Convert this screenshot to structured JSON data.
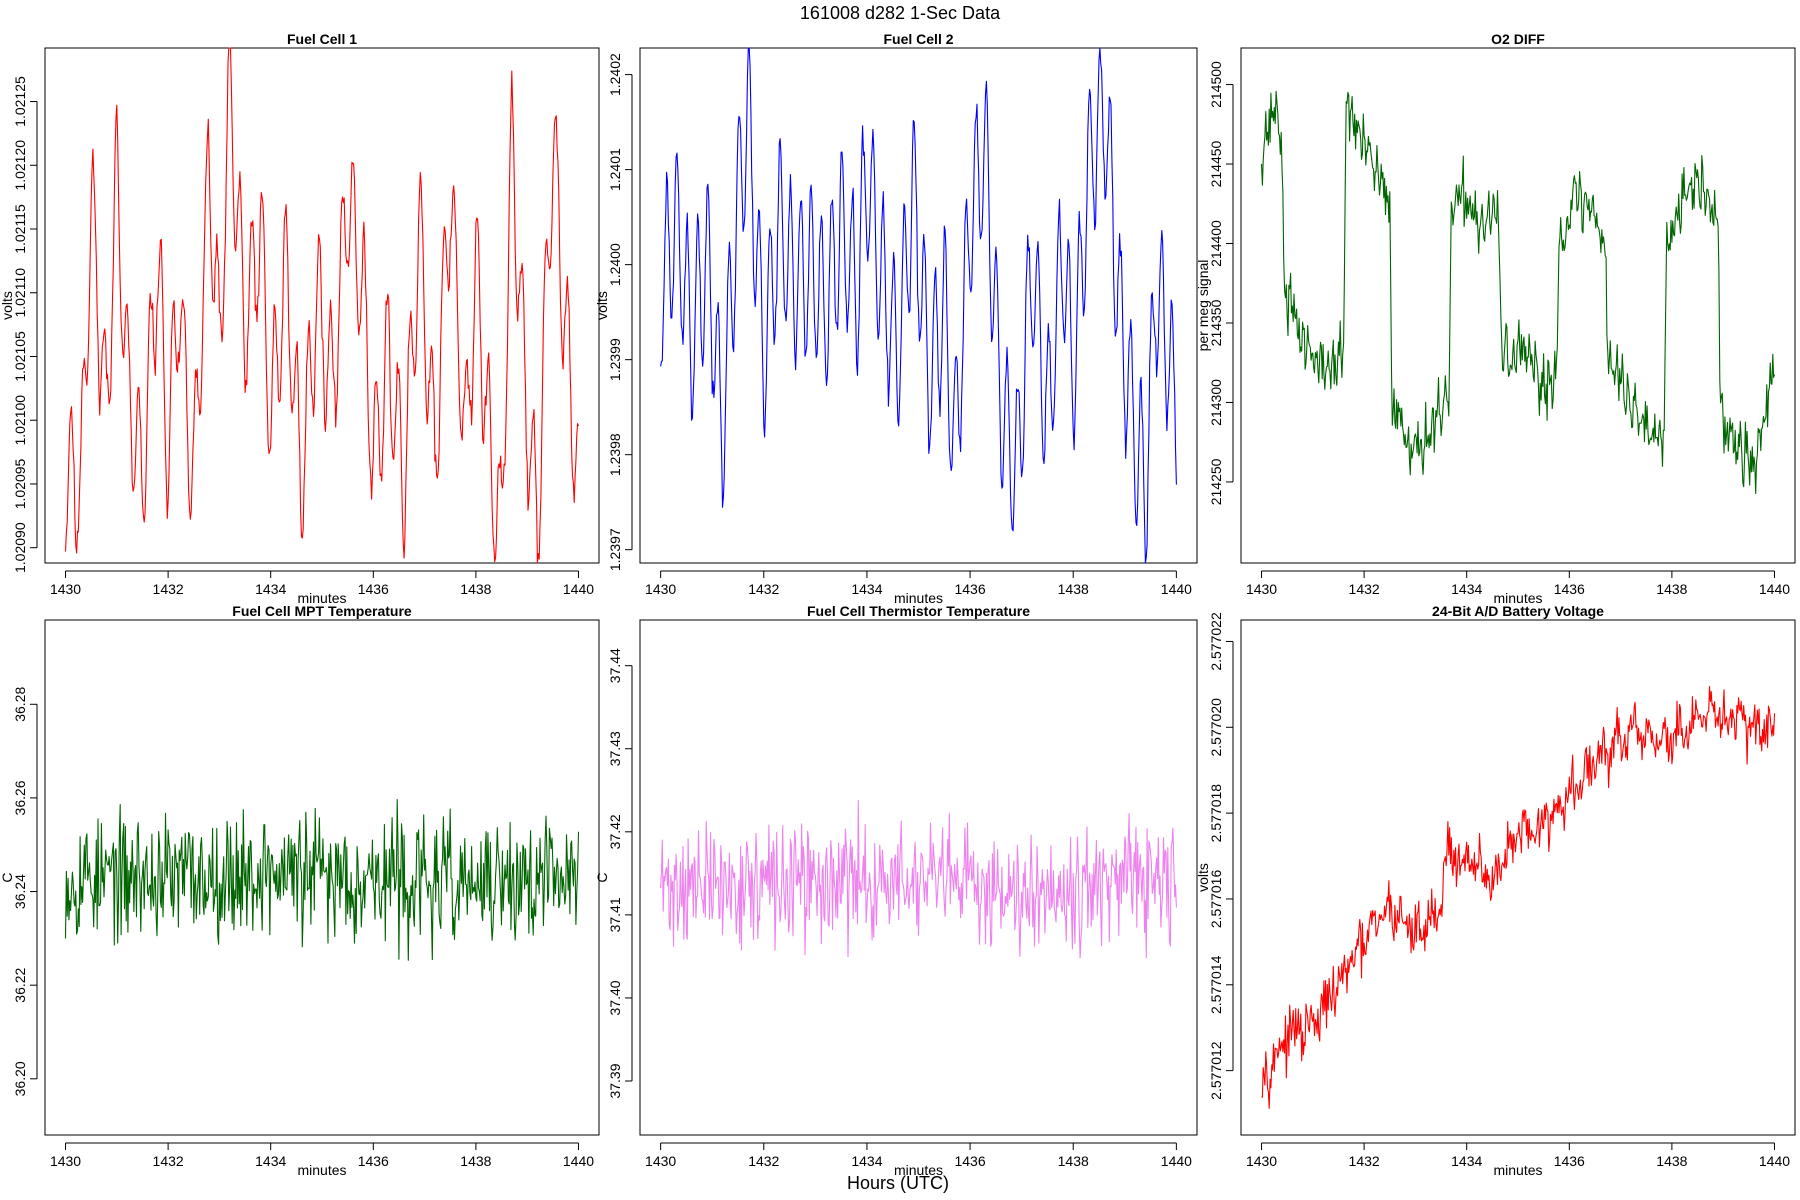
{
  "figure": {
    "title": "161008   d282   1-Sec Data",
    "xlabel": "Hours (UTC)"
  },
  "chart_data": [
    {
      "type": "line",
      "title": "Fuel Cell 1",
      "xlabel": "minutes",
      "ylabel": "volts",
      "color": "#ff0000",
      "xlim": [
        1429.6,
        1440.4
      ],
      "ylim": [
        1.020888,
        1.021292
      ],
      "xticks": [
        1430,
        1432,
        1434,
        1436,
        1438,
        1440
      ],
      "yticks": [
        1.0209,
        1.02095,
        1.021,
        1.02105,
        1.0211,
        1.02115,
        1.0212,
        1.02125
      ],
      "ytick_labels": [
        "1.02090",
        "1.02095",
        "1.02100",
        "1.02105",
        "1.02110",
        "1.02115",
        "1.02120",
        "1.02125"
      ],
      "x_start": 1430,
      "x_end": 1440,
      "anchors": [
        [
          1430.0,
          1.02096
        ],
        [
          1430.3,
          1.02095
        ],
        [
          1430.5,
          1.02117
        ],
        [
          1430.8,
          1.021
        ],
        [
          1431.0,
          1.0212
        ],
        [
          1431.2,
          1.02103
        ],
        [
          1431.5,
          1.02095
        ],
        [
          1431.8,
          1.02113
        ],
        [
          1432.0,
          1.02097
        ],
        [
          1432.2,
          1.0211
        ],
        [
          1432.5,
          1.02095
        ],
        [
          1432.8,
          1.0212
        ],
        [
          1433.0,
          1.02105
        ],
        [
          1433.2,
          1.02126
        ],
        [
          1433.5,
          1.02107
        ],
        [
          1433.8,
          1.02115
        ],
        [
          1434.0,
          1.021
        ],
        [
          1434.3,
          1.02112
        ],
        [
          1434.6,
          1.02095
        ],
        [
          1434.9,
          1.0211
        ],
        [
          1435.2,
          1.02102
        ],
        [
          1435.5,
          1.02118
        ],
        [
          1435.8,
          1.0211
        ],
        [
          1436.0,
          1.02097
        ],
        [
          1436.3,
          1.02105
        ],
        [
          1436.6,
          1.02095
        ],
        [
          1436.9,
          1.02115
        ],
        [
          1437.2,
          1.02097
        ],
        [
          1437.5,
          1.02118
        ],
        [
          1437.8,
          1.02098
        ],
        [
          1438.0,
          1.02112
        ],
        [
          1438.3,
          1.02096
        ],
        [
          1438.5,
          1.02091
        ],
        [
          1438.7,
          1.02122
        ],
        [
          1439.0,
          1.021
        ],
        [
          1439.2,
          1.02092
        ],
        [
          1439.5,
          1.02122
        ],
        [
          1439.7,
          1.0211
        ],
        [
          1440.0,
          1.02095
        ]
      ],
      "osc_period": 0.22,
      "osc_amp": 5.5e-05,
      "noise": 1.2e-05,
      "seed": 11
    },
    {
      "type": "line",
      "title": "Fuel Cell 2",
      "xlabel": "minutes",
      "ylabel": "volts",
      "color": "#0000ff",
      "xlim": [
        1429.6,
        1440.4
      ],
      "ylim": [
        1.239686,
        1.240228
      ],
      "xticks": [
        1430,
        1432,
        1434,
        1436,
        1438,
        1440
      ],
      "yticks": [
        1.2397,
        1.2398,
        1.2399,
        1.24,
        1.2401,
        1.2402
      ],
      "ytick_labels": [
        "1.2397",
        "1.2398",
        "1.2399",
        "1.2400",
        "1.2401",
        "1.2402"
      ],
      "x_start": 1430,
      "x_end": 1440,
      "anchors": [
        [
          1430.0,
          1.23997
        ],
        [
          1430.3,
          1.24005
        ],
        [
          1430.6,
          1.23992
        ],
        [
          1430.9,
          1.24001
        ],
        [
          1431.2,
          1.23983
        ],
        [
          1431.5,
          1.24007
        ],
        [
          1431.7,
          1.24016
        ],
        [
          1432.0,
          1.2399
        ],
        [
          1432.3,
          1.24005
        ],
        [
          1432.6,
          1.23998
        ],
        [
          1432.9,
          1.24
        ],
        [
          1433.2,
          1.23995
        ],
        [
          1433.5,
          1.24004
        ],
        [
          1433.8,
          1.23997
        ],
        [
          1434.0,
          1.2401
        ],
        [
          1434.3,
          1.23998
        ],
        [
          1434.6,
          1.2399
        ],
        [
          1434.9,
          1.24008
        ],
        [
          1435.2,
          1.23988
        ],
        [
          1435.5,
          1.23996
        ],
        [
          1435.7,
          1.2398
        ],
        [
          1436.0,
          1.24005
        ],
        [
          1436.3,
          1.24012
        ],
        [
          1436.6,
          1.23985
        ],
        [
          1436.9,
          1.23978
        ],
        [
          1437.2,
          1.24
        ],
        [
          1437.5,
          1.23984
        ],
        [
          1437.8,
          1.24002
        ],
        [
          1438.0,
          1.23988
        ],
        [
          1438.3,
          1.2401
        ],
        [
          1438.6,
          1.24017
        ],
        [
          1438.9,
          1.23995
        ],
        [
          1439.1,
          1.23986
        ],
        [
          1439.4,
          1.23975
        ],
        [
          1439.6,
          1.23998
        ],
        [
          1439.8,
          1.23993
        ],
        [
          1440.0,
          1.23983
        ]
      ],
      "osc_period": 0.2,
      "osc_amp": 8.5e-05,
      "noise": 1.5e-05,
      "seed": 23
    },
    {
      "type": "line",
      "title": "O2 DIFF",
      "xlabel": "minutes",
      "ylabel": "per meg signal",
      "color": "#006400",
      "xlim": [
        1429.6,
        1440.4
      ],
      "ylim": [
        214199,
        214523
      ],
      "xticks": [
        1430,
        1432,
        1434,
        1436,
        1438,
        1440
      ],
      "yticks": [
        214250,
        214300,
        214350,
        214400,
        214450,
        214500
      ],
      "ytick_labels": [
        "214250",
        "214300",
        "214350",
        "214400",
        "214450",
        "214500"
      ],
      "x_start": 1430,
      "x_end": 1440,
      "anchors": [
        [
          1430.0,
          214460
        ],
        [
          1430.3,
          214490
        ],
        [
          1430.4,
          214450
        ],
        [
          1430.45,
          214370
        ],
        [
          1430.8,
          214340
        ],
        [
          1431.2,
          214320
        ],
        [
          1431.6,
          214330
        ],
        [
          1431.65,
          214490
        ],
        [
          1432.0,
          214460
        ],
        [
          1432.3,
          214440
        ],
        [
          1432.5,
          214420
        ],
        [
          1432.55,
          214300
        ],
        [
          1433.0,
          214270
        ],
        [
          1433.5,
          214290
        ],
        [
          1433.65,
          214300
        ],
        [
          1433.7,
          214420
        ],
        [
          1434.0,
          214430
        ],
        [
          1434.3,
          214410
        ],
        [
          1434.6,
          214420
        ],
        [
          1434.7,
          214330
        ],
        [
          1435.1,
          214330
        ],
        [
          1435.5,
          214310
        ],
        [
          1435.75,
          214320
        ],
        [
          1435.8,
          214400
        ],
        [
          1436.1,
          214430
        ],
        [
          1436.5,
          214420
        ],
        [
          1436.7,
          214400
        ],
        [
          1436.75,
          214330
        ],
        [
          1437.2,
          214300
        ],
        [
          1437.6,
          214280
        ],
        [
          1437.85,
          214290
        ],
        [
          1437.9,
          214400
        ],
        [
          1438.3,
          214440
        ],
        [
          1438.7,
          214430
        ],
        [
          1438.9,
          214410
        ],
        [
          1438.95,
          214290
        ],
        [
          1439.3,
          214270
        ],
        [
          1439.6,
          214260
        ],
        [
          1439.8,
          214290
        ],
        [
          1440.0,
          214320
        ]
      ],
      "osc_period": 0.12,
      "osc_amp": 6,
      "noise": 16,
      "seed": 37
    },
    {
      "type": "line",
      "title": "Fuel Cell MPT Temperature",
      "xlabel": "minutes",
      "ylabel": "C",
      "color": "#006400",
      "xlim": [
        1429.6,
        1440.4
      ],
      "ylim": [
        36.188,
        36.298
      ],
      "xticks": [
        1430,
        1432,
        1434,
        1436,
        1438,
        1440
      ],
      "yticks": [
        36.2,
        36.22,
        36.24,
        36.26,
        36.28
      ],
      "ytick_labels": [
        "36.20",
        "36.22",
        "36.24",
        "36.26",
        "36.28"
      ],
      "x_start": 1430,
      "x_end": 1440,
      "anchors": [
        [
          1430.0,
          36.243
        ],
        [
          1432.0,
          36.243
        ],
        [
          1434.0,
          36.244
        ],
        [
          1436.0,
          36.243
        ],
        [
          1438.0,
          36.241
        ],
        [
          1440.0,
          36.243
        ]
      ],
      "osc_period": 0.5,
      "osc_amp": 0.001,
      "noise": 0.012,
      "seed": 53
    },
    {
      "type": "line",
      "title": "Fuel Cell Thermistor Temperature",
      "xlabel": "minutes",
      "ylabel": "C",
      "color": "#ee82ee",
      "xlim": [
        1429.6,
        1440.4
      ],
      "ylim": [
        37.3835,
        37.4455
      ],
      "xticks": [
        1430,
        1432,
        1434,
        1436,
        1438,
        1440
      ],
      "yticks": [
        37.39,
        37.4,
        37.41,
        37.42,
        37.43,
        37.44
      ],
      "ytick_labels": [
        "37.39",
        "37.40",
        "37.41",
        "37.42",
        "37.43",
        "37.44"
      ],
      "x_start": 1430,
      "x_end": 1440,
      "anchors": [
        [
          1430.0,
          37.4135
        ],
        [
          1432.0,
          37.4135
        ],
        [
          1434.0,
          37.414
        ],
        [
          1436.0,
          37.4135
        ],
        [
          1438.0,
          37.4135
        ],
        [
          1440.0,
          37.4135
        ]
      ],
      "osc_period": 0.5,
      "osc_amp": 0.0003,
      "noise": 0.0065,
      "seed": 71
    },
    {
      "type": "line",
      "title": "24-Bit A/D Battery Voltage",
      "xlabel": "minutes",
      "ylabel": "volts",
      "color": "#ff0000",
      "xlim": [
        1429.6,
        1440.4
      ],
      "ylim": [
        2.5770105,
        2.5770225
      ],
      "xticks": [
        1430,
        1432,
        1434,
        1436,
        1438,
        1440
      ],
      "yticks": [
        2.577012,
        2.577014,
        2.577016,
        2.577018,
        2.57702,
        2.577022
      ],
      "ytick_labels": [
        "2.577012",
        "2.577014",
        "2.577016",
        "2.577018",
        "2.577020",
        "2.577022"
      ],
      "x_start": 1430,
      "x_end": 1440,
      "anchors": [
        [
          1430.0,
          2.5770118
        ],
        [
          1430.5,
          2.5770128
        ],
        [
          1431.0,
          2.577013
        ],
        [
          1431.5,
          2.577014
        ],
        [
          1432.0,
          2.577015
        ],
        [
          1432.5,
          2.5770158
        ],
        [
          1433.0,
          2.5770152
        ],
        [
          1433.5,
          2.5770158
        ],
        [
          1433.6,
          2.5770172
        ],
        [
          1434.0,
          2.5770168
        ],
        [
          1434.5,
          2.5770165
        ],
        [
          1435.0,
          2.5770174
        ],
        [
          1435.5,
          2.5770178
        ],
        [
          1436.0,
          2.5770184
        ],
        [
          1436.5,
          2.5770192
        ],
        [
          1437.0,
          2.5770197
        ],
        [
          1437.5,
          2.5770198
        ],
        [
          1438.0,
          2.5770197
        ],
        [
          1438.5,
          2.5770201
        ],
        [
          1439.0,
          2.5770203
        ],
        [
          1439.5,
          2.57702
        ],
        [
          1440.0,
          2.5770201
        ]
      ],
      "osc_period": 0.3,
      "osc_amp": 2e-07,
      "noise": 5.5e-07,
      "seed": 97
    }
  ]
}
